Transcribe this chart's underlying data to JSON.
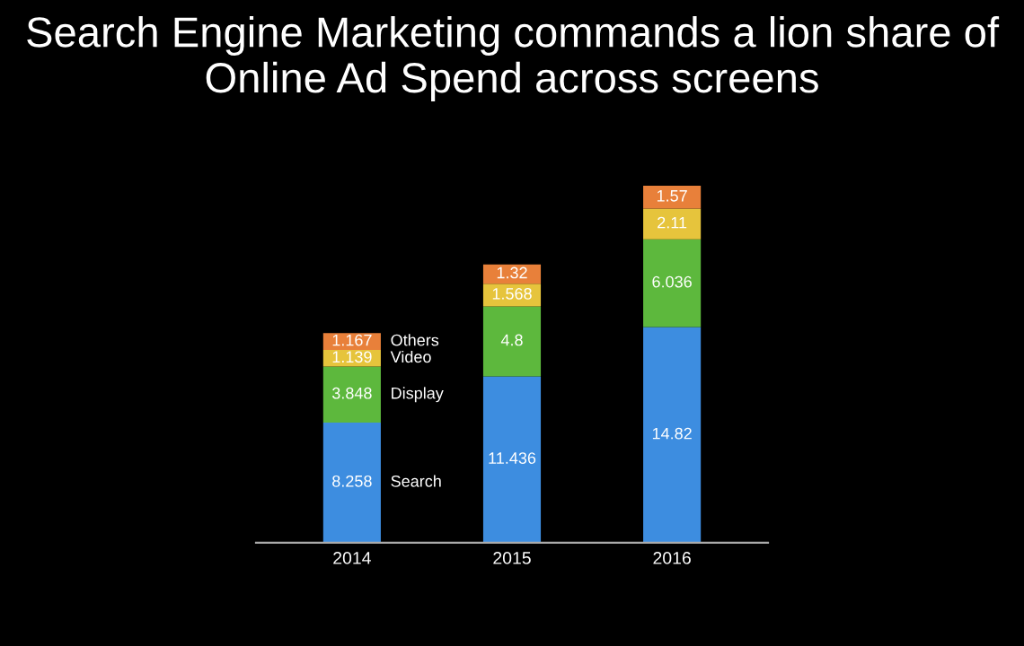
{
  "chart_data": {
    "type": "bar",
    "title": "Search Engine Marketing commands a lion share of Online Ad Spend across screens",
    "categories": [
      "2014",
      "2015",
      "2016"
    ],
    "stacked": true,
    "data_labels": true,
    "series": [
      {
        "name": "Search",
        "color": "#3d8de0",
        "values": [
          8.258,
          11.436,
          14.82
        ]
      },
      {
        "name": "Display",
        "color": "#5db83d",
        "values": [
          3.848,
          4.8,
          6.036
        ]
      },
      {
        "name": "Video",
        "color": "#e6c43c",
        "values": [
          1.139,
          1.568,
          2.11
        ]
      },
      {
        "name": "Others",
        "color": "#e8803a",
        "values": [
          1.167,
          1.32,
          1.57
        ]
      }
    ]
  }
}
